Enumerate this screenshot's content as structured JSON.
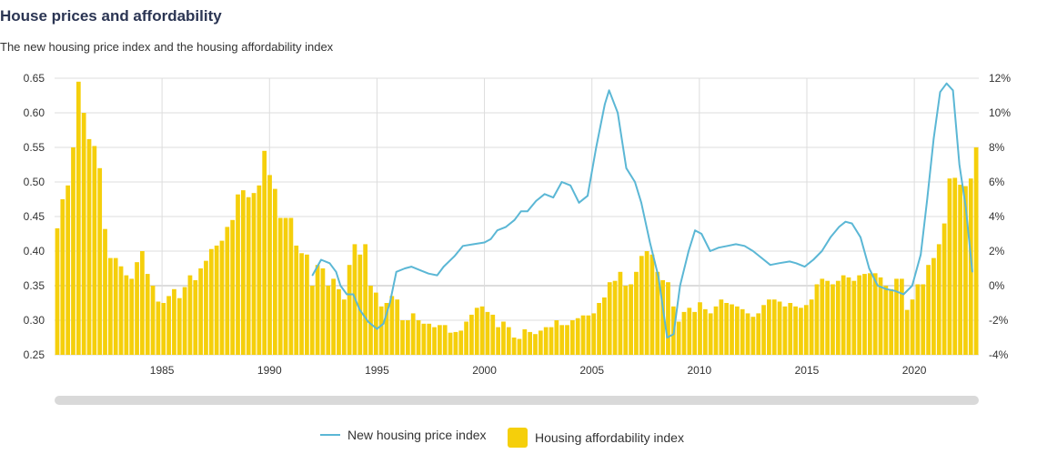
{
  "title": "House prices and affordability",
  "subtitle": "The new housing price index and the housing affordability index",
  "legend": {
    "line_label": "New housing price index",
    "bar_label": "Housing affordability index"
  },
  "colors": {
    "line": "#5bb7d5",
    "bar": "#f5cf0b",
    "grid": "#dddddd"
  },
  "chart_data": {
    "type": "bar",
    "title": "House prices and affordability",
    "x_ticks": [
      "1985",
      "1990",
      "1995",
      "2000",
      "2005",
      "2010",
      "2015",
      "2020"
    ],
    "x_range": [
      1980,
      2023
    ],
    "left_axis": {
      "ticks": [
        "0.25",
        "0.30",
        "0.35",
        "0.40",
        "0.45",
        "0.50",
        "0.55",
        "0.60",
        "0.65"
      ],
      "ylim": [
        0.25,
        0.65
      ]
    },
    "right_axis": {
      "ticks": [
        "-4%",
        "-2%",
        "0%",
        "2%",
        "4%",
        "6%",
        "8%",
        "10%",
        "12%"
      ],
      "ylim": [
        -4,
        12
      ]
    },
    "bar_series": {
      "name": "Housing affordability index",
      "axis": "left",
      "values": [
        0.433,
        0.475,
        0.495,
        0.55,
        0.645,
        0.6,
        0.562,
        0.552,
        0.52,
        0.432,
        0.39,
        0.39,
        0.378,
        0.365,
        0.36,
        0.384,
        0.4,
        0.367,
        0.35,
        0.327,
        0.325,
        0.335,
        0.345,
        0.332,
        0.348,
        0.365,
        0.358,
        0.375,
        0.386,
        0.403,
        0.408,
        0.415,
        0.435,
        0.445,
        0.482,
        0.488,
        0.478,
        0.484,
        0.495,
        0.545,
        0.51,
        0.49,
        0.448,
        0.448,
        0.448,
        0.408,
        0.397,
        0.395,
        0.35,
        0.38,
        0.375,
        0.35,
        0.36,
        0.345,
        0.33,
        0.38,
        0.41,
        0.395,
        0.41,
        0.35,
        0.34,
        0.32,
        0.325,
        0.335,
        0.33,
        0.3,
        0.3,
        0.31,
        0.3,
        0.295,
        0.295,
        0.29,
        0.293,
        0.293,
        0.282,
        0.283,
        0.285,
        0.298,
        0.308,
        0.318,
        0.32,
        0.312,
        0.308,
        0.29,
        0.298,
        0.29,
        0.275,
        0.273,
        0.287,
        0.283,
        0.28,
        0.285,
        0.29,
        0.29,
        0.3,
        0.293,
        0.293,
        0.3,
        0.303,
        0.307,
        0.307,
        0.31,
        0.325,
        0.333,
        0.355,
        0.357,
        0.37,
        0.35,
        0.352,
        0.37,
        0.393,
        0.4,
        0.395,
        0.37,
        0.358,
        0.355,
        0.32,
        0.298,
        0.312,
        0.318,
        0.312,
        0.326,
        0.316,
        0.31,
        0.32,
        0.33,
        0.325,
        0.323,
        0.32,
        0.316,
        0.31,
        0.305,
        0.31,
        0.322,
        0.33,
        0.33,
        0.327,
        0.32,
        0.325,
        0.32,
        0.318,
        0.322,
        0.33,
        0.352,
        0.36,
        0.357,
        0.352,
        0.357,
        0.365,
        0.362,
        0.357,
        0.365,
        0.367,
        0.368,
        0.368,
        0.362,
        0.35,
        0.345,
        0.36,
        0.36,
        0.315,
        0.33,
        0.352,
        0.352,
        0.38,
        0.39,
        0.41,
        0.44,
        0.505,
        0.506,
        0.496,
        0.494,
        0.505,
        0.55
      ]
    },
    "line_series": {
      "name": "New housing price index",
      "axis": "right",
      "x": [
        1992,
        1992.4,
        1992.8,
        1993.1,
        1993.3,
        1993.6,
        1993.9,
        1994.2,
        1994.6,
        1995,
        1995.3,
        1995.6,
        1995.9,
        1996.3,
        1996.6,
        1997,
        1997.4,
        1997.8,
        1998.1,
        1998.6,
        1999,
        1999.5,
        2000,
        2000.3,
        2000.6,
        2001,
        2001.4,
        2001.7,
        2002,
        2002.4,
        2002.8,
        2003.2,
        2003.6,
        2004,
        2004.4,
        2004.8,
        2005.2,
        2005.6,
        2005.8,
        2006.2,
        2006.6,
        2007,
        2007.3,
        2007.7,
        2008.1,
        2008.5,
        2008.8,
        2009.1,
        2009.5,
        2009.8,
        2010.1,
        2010.5,
        2010.9,
        2011.3,
        2011.7,
        2012.1,
        2012.5,
        2012.9,
        2013.3,
        2013.7,
        2014.2,
        2014.5,
        2014.9,
        2015.3,
        2015.7,
        2016.1,
        2016.5,
        2016.8,
        2017.1,
        2017.5,
        2017.9,
        2018.3,
        2018.7,
        2019.1,
        2019.5,
        2019.9,
        2020.3,
        2020.6,
        2020.9,
        2021.2,
        2021.5,
        2021.8,
        2022.1,
        2022.4,
        2022.7
      ],
      "values": [
        0.6,
        1.5,
        1.3,
        0.8,
        0,
        -0.5,
        -0.5,
        -1.4,
        -2.1,
        -2.5,
        -2.2,
        -1,
        0.8,
        1,
        1.1,
        0.9,
        0.7,
        0.6,
        1.1,
        1.7,
        2.3,
        2.4,
        2.5,
        2.7,
        3.2,
        3.4,
        3.8,
        4.3,
        4.3,
        4.9,
        5.3,
        5.1,
        6,
        5.8,
        4.8,
        5.2,
        8,
        10.5,
        11.3,
        10,
        6.8,
        6,
        4.8,
        2.5,
        0.5,
        -3,
        -2.8,
        0,
        2,
        3.2,
        3,
        2,
        2.2,
        2.3,
        2.4,
        2.3,
        2,
        1.6,
        1.2,
        1.3,
        1.4,
        1.3,
        1.1,
        1.5,
        2,
        2.8,
        3.4,
        3.7,
        3.6,
        2.8,
        1,
        0,
        -0.2,
        -0.3,
        -0.5,
        0,
        1.8,
        5,
        8.5,
        11.2,
        11.7,
        11.3,
        7,
        4.5,
        0.8
      ]
    }
  }
}
